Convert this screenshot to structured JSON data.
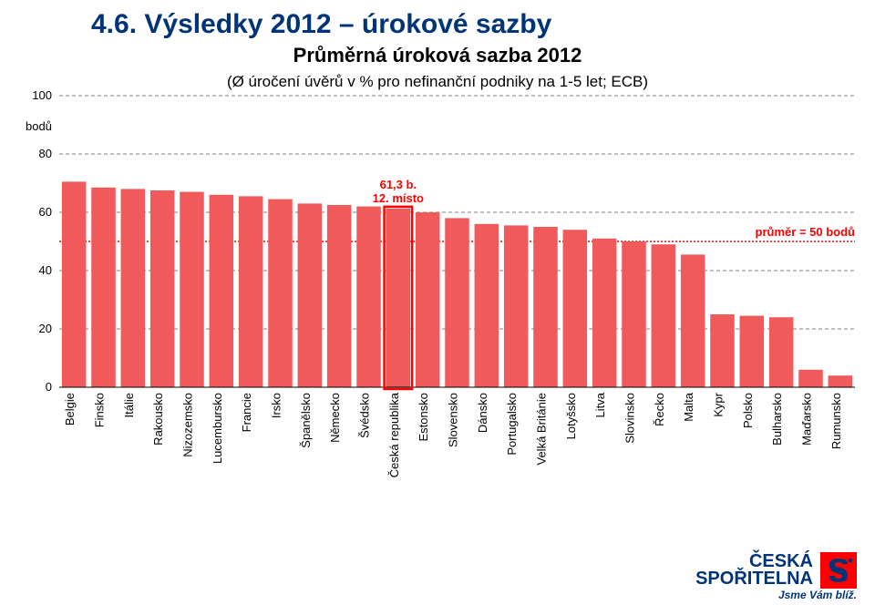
{
  "header": {
    "main_title": "4.6. Výsledky 2012 – úrokové sazby",
    "subtitle": "Průměrná úroková sazba 2012",
    "description": "(Ø úročení úvěrů v % pro nefinanční podniky na 1-5 let; ECB)"
  },
  "chart": {
    "type": "bar",
    "y_axis_label": "bodů",
    "ylim": [
      0,
      100
    ],
    "yticks": [
      0,
      20,
      40,
      60,
      80,
      100
    ],
    "ytick_step": 20,
    "average_value": 50,
    "average_label": "průměr = 50 bodů",
    "annotation": {
      "value_text": "61,3 b.",
      "rank_text": "12. místo",
      "bar_index": 11
    },
    "highlight_index": 11,
    "bar_color": "#f15a5a",
    "highlight_stroke": "#ff0000",
    "gridline_color": "#808080",
    "average_line_color": "#ff0000",
    "text_color": "#000000",
    "accent_color": "#003478",
    "background_color": "#ffffff",
    "bar_gap_ratio": 0.18,
    "categories": [
      "Belgie",
      "Finsko",
      "Itálie",
      "Rakousko",
      "Nizozemsko",
      "Lucembursko",
      "Francie",
      "Irsko",
      "Španělsko",
      "Německo",
      "Švédsko",
      "Česká republika",
      "Estonsko",
      "Slovensko",
      "Dánsko",
      "Portugalsko",
      "Velká Británie",
      "Lotyšsko",
      "Litva",
      "Slovinsko",
      "Řecko",
      "Malta",
      "Kypr",
      "Polsko",
      "Bulharsko",
      "Maďarsko",
      "Rumunsko"
    ],
    "values": [
      70.5,
      68.5,
      68,
      67.5,
      67,
      66,
      65.5,
      64.5,
      63,
      62.5,
      62,
      61.3,
      60,
      58,
      56,
      55.5,
      55,
      54,
      51,
      50,
      49,
      45.5,
      25,
      24.5,
      24,
      6,
      4
    ]
  },
  "footer": {
    "brand_line1": "ČESKÁ",
    "brand_line2": "SPOŘITELNA",
    "logo_bg": "#ff0000",
    "logo_fg": "#003478",
    "tagline": "Jsme Vám blíž."
  }
}
